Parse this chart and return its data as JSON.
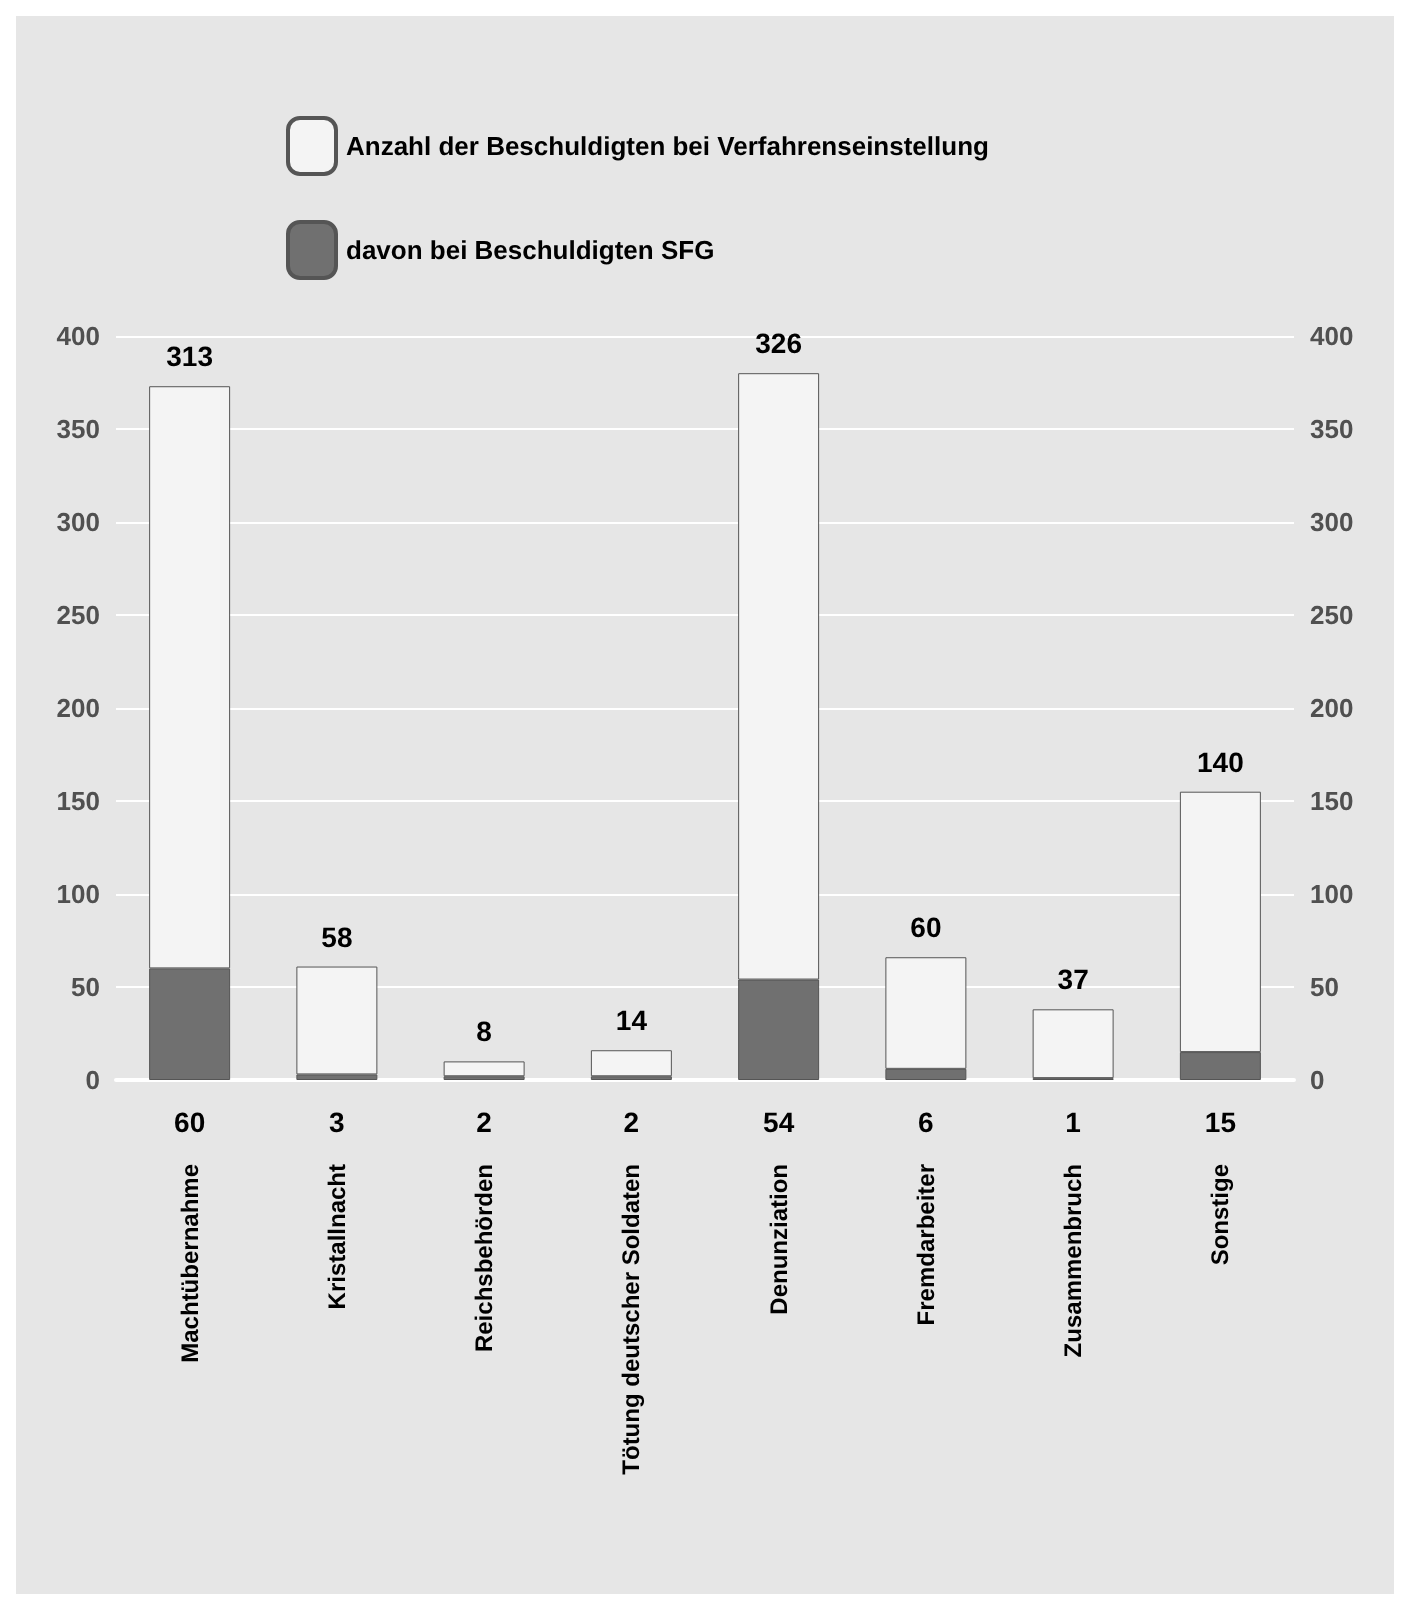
{
  "chart_data": {
    "type": "bar",
    "stacked": true,
    "categories": [
      "Machtübernahme",
      "Kristallnacht",
      "Reichsbehörden",
      "Tötung deutscher Soldaten",
      "Denunziation",
      "Fremdarbeiter",
      "Zusammenbruch",
      "Sonstige"
    ],
    "series": [
      {
        "name": "davon bei Beschuldigten SFG",
        "color": "#707070",
        "values": [
          60,
          3,
          2,
          2,
          54,
          6,
          1,
          15
        ]
      },
      {
        "name": "Anzahl der Beschuldigten bei Verfahrenseinstellung",
        "color": "#f4f4f4",
        "values": [
          313,
          58,
          8,
          14,
          326,
          60,
          37,
          140
        ]
      }
    ],
    "ylim": [
      0,
      400
    ],
    "yticks": [
      0,
      50,
      100,
      150,
      200,
      250,
      300,
      350,
      400
    ],
    "y2lim": [
      0,
      400
    ],
    "y2ticks": [
      0,
      50,
      100,
      150,
      200,
      250,
      300,
      350,
      400
    ],
    "grid": "y",
    "legend": "top left",
    "data_labels": true
  }
}
